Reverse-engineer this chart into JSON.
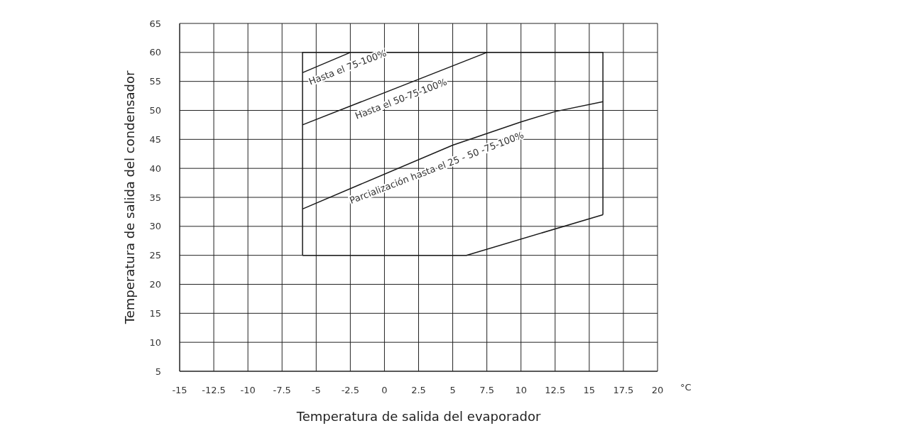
{
  "chart_data": {
    "type": "line",
    "xlabel": "Temperatura de salida del evaporador",
    "ylabel": "Temperatura de salida del condensador",
    "series": [
      {
        "color": "#1a1a1a",
        "x": [
          -6,
          -6,
          16,
          16
        ],
        "values": [
          25,
          60,
          60,
          32
        ]
      },
      {
        "color": "#1a1a1a",
        "x": [
          -6,
          6,
          16
        ],
        "values": [
          25,
          25,
          32
        ]
      },
      {
        "color": "#1a1a1a",
        "x": [
          -6,
          -2.5
        ],
        "values": [
          56.5,
          60
        ]
      },
      {
        "color": "#1a1a1a",
        "x": [
          -6,
          7.5
        ],
        "values": [
          47.5,
          60
        ]
      },
      {
        "color": "#1a1a1a",
        "x": [
          -6,
          5,
          10,
          12.5,
          16
        ],
        "values": [
          33,
          44,
          48,
          49.8,
          51.5
        ]
      }
    ],
    "xlim": [
      -15,
      20
    ],
    "xticks": [
      -15,
      -12.5,
      -10,
      -7.5,
      -5,
      -2.5,
      0,
      2.5,
      5,
      7.5,
      10,
      12.5,
      15,
      17.5,
      20
    ],
    "ylim": [
      5,
      65
    ],
    "yticks": [
      5,
      10,
      15,
      20,
      25,
      30,
      35,
      40,
      45,
      50,
      55,
      60,
      65
    ],
    "grid": true,
    "marker": "none",
    "line_style": "solid",
    "annotations": [
      "°C",
      {
        "text": "Hasta el 75-100%",
        "x": -5.8,
        "y": 56.7
      },
      {
        "text": "Hasta el 50-75-100%",
        "x": -2.4,
        "y": 50.8
      },
      {
        "text": "Parcialización hasta el 25 - 50 -75-100%",
        "x": -2.8,
        "y": 36.2
      }
    ]
  }
}
